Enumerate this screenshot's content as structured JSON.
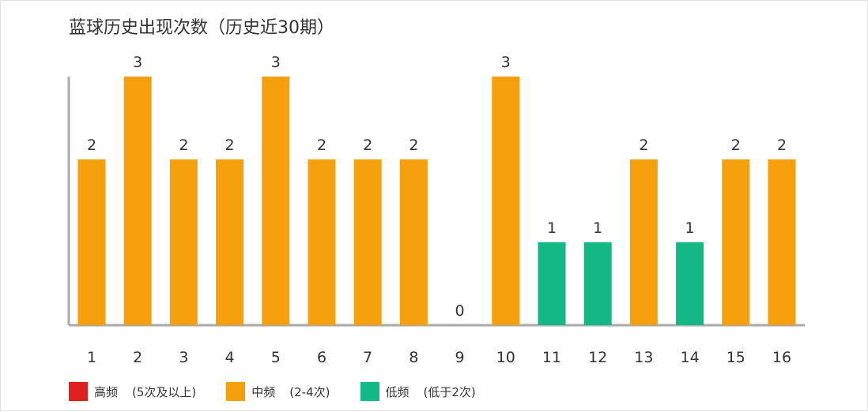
{
  "chart_data": {
    "type": "bar",
    "title": "蓝球历史出现次数（历史近30期）",
    "categories": [
      "1",
      "2",
      "3",
      "4",
      "5",
      "6",
      "7",
      "8",
      "9",
      "10",
      "11",
      "12",
      "13",
      "14",
      "15",
      "16"
    ],
    "values": [
      2,
      3,
      2,
      2,
      3,
      2,
      2,
      2,
      0,
      3,
      1,
      1,
      2,
      1,
      2,
      2
    ],
    "ylim": [
      0,
      3
    ],
    "grid": false,
    "legend_position": "bottom-left",
    "legend": [
      {
        "name": "高频",
        "range": "(5次及以上)",
        "color": "#e02020"
      },
      {
        "name": "中频",
        "range": "(2-4次)",
        "color": "#f5a00c"
      },
      {
        "name": "低频",
        "range": "(低于2次)",
        "color": "#12b886"
      }
    ]
  }
}
